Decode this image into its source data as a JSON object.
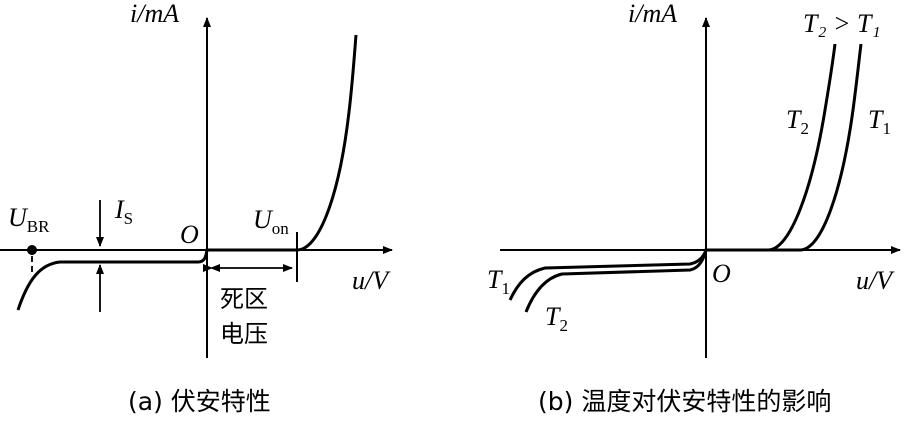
{
  "panel_a": {
    "y_axis_label": "i/mA",
    "x_axis_label": "u/V",
    "origin_label": "O",
    "breakdown_label": "U",
    "breakdown_sub": "BR",
    "saturation_label": "I",
    "saturation_sub": "S",
    "turn_on_label": "U",
    "turn_on_sub": "on",
    "dead_zone_line1": "死区",
    "dead_zone_line2": "电压",
    "caption": "(a)  伏安特性"
  },
  "panel_b": {
    "y_axis_label": "i/mA",
    "x_axis_label": "u/V",
    "origin_label": "O",
    "relation_label": "T₂ > T₁",
    "t2_forward_label": "T",
    "t2_forward_sub": "2",
    "t1_forward_label": "T",
    "t1_forward_sub": "1",
    "t1_reverse_label": "T",
    "t1_reverse_sub": "1",
    "t2_reverse_label": "T",
    "t2_reverse_sub": "2",
    "caption": "(b)  温度对伏安特性的影响"
  }
}
